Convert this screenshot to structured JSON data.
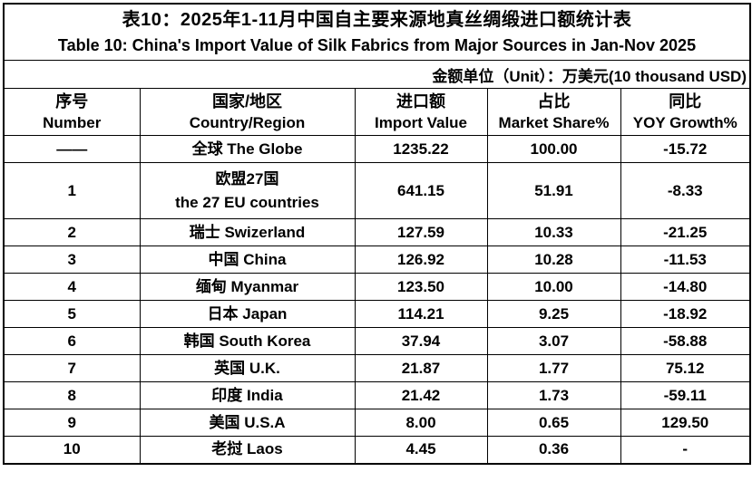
{
  "chart_data": {
    "type": "table",
    "title_zh": "表10：2025年1-11月中国自主要来源地真丝绸缎进口额统计表",
    "title_en": "Table 10: China's Import Value of Silk Fabrics from Major Sources in Jan-Nov 2025",
    "unit_note": "金额单位（Unit）：万美元(10 thousand USD)",
    "columns": [
      {
        "zh": "序号",
        "en": "Number"
      },
      {
        "zh": "国家/地区",
        "en": "Country/Region"
      },
      {
        "zh": "进口额",
        "en": "Import Value"
      },
      {
        "zh": "占比",
        "en": "Market Share%"
      },
      {
        "zh": "同比",
        "en": "YOY Growth%"
      }
    ],
    "rows": [
      {
        "number": "——",
        "country": [
          "全球 The Globe"
        ],
        "import_value": "1235.22",
        "market_share": "100.00",
        "yoy_growth": "-15.72",
        "tall": false
      },
      {
        "number": "1",
        "country": [
          "欧盟27国",
          "the 27 EU countries"
        ],
        "import_value": "641.15",
        "market_share": "51.91",
        "yoy_growth": "-8.33",
        "tall": true
      },
      {
        "number": "2",
        "country": [
          "瑞士 Swizerland"
        ],
        "import_value": "127.59",
        "market_share": "10.33",
        "yoy_growth": "-21.25",
        "tall": false
      },
      {
        "number": "3",
        "country": [
          "中国 China"
        ],
        "import_value": "126.92",
        "market_share": "10.28",
        "yoy_growth": "-11.53",
        "tall": false
      },
      {
        "number": "4",
        "country": [
          "缅甸 Myanmar"
        ],
        "import_value": "123.50",
        "market_share": "10.00",
        "yoy_growth": "-14.80",
        "tall": false
      },
      {
        "number": "5",
        "country": [
          "日本 Japan"
        ],
        "import_value": "114.21",
        "market_share": "9.25",
        "yoy_growth": "-18.92",
        "tall": false
      },
      {
        "number": "6",
        "country": [
          "韩国 South Korea"
        ],
        "import_value": "37.94",
        "market_share": "3.07",
        "yoy_growth": "-58.88",
        "tall": false
      },
      {
        "number": "7",
        "country": [
          "英国 U.K."
        ],
        "import_value": "21.87",
        "market_share": "1.77",
        "yoy_growth": "75.12",
        "tall": false
      },
      {
        "number": "8",
        "country": [
          "印度 India"
        ],
        "import_value": "21.42",
        "market_share": "1.73",
        "yoy_growth": "-59.11",
        "tall": false
      },
      {
        "number": "9",
        "country": [
          "美国 U.S.A"
        ],
        "import_value": "8.00",
        "market_share": "0.65",
        "yoy_growth": "129.50",
        "tall": false
      },
      {
        "number": "10",
        "country": [
          "老挝 Laos"
        ],
        "import_value": "4.45",
        "market_share": "0.36",
        "yoy_growth": "-",
        "tall": false
      }
    ],
    "colors": {
      "text": "#000000",
      "border": "#000000",
      "background": "#ffffff"
    }
  }
}
